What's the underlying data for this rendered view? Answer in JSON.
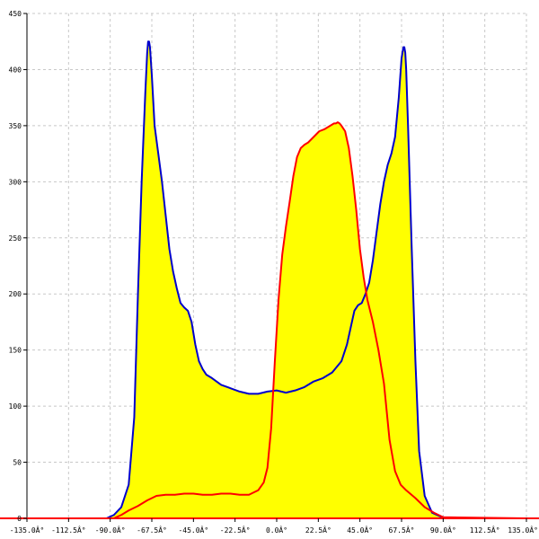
{
  "chart_data": {
    "type": "area",
    "title": "",
    "xlabel": "",
    "ylabel": "",
    "xlim": [
      -135,
      135
    ],
    "ylim": [
      0,
      450
    ],
    "grid": true,
    "legend": "none",
    "x_ticks": [
      -135,
      -112.5,
      -90,
      -67.5,
      -45,
      -22.5,
      0,
      22.5,
      45,
      67.5,
      90,
      112.5,
      135
    ],
    "x_tick_labels": [
      "-135.0Â°",
      "-112.5Â°",
      "-90.0Â°",
      "-67.5Â°",
      "-45.0Â°",
      "-22.5Â°",
      "0.0Â°",
      "22.5Â°",
      "45.0Â°",
      "67.5Â°",
      "90.0Â°",
      "112.5Â°",
      "135.0Â°"
    ],
    "y_ticks": [
      0,
      50,
      100,
      150,
      200,
      250,
      300,
      350,
      400,
      450
    ],
    "y_tick_labels": [
      "0",
      "50",
      "100",
      "150",
      "200",
      "250",
      "300",
      "350",
      "400",
      "450"
    ],
    "fill_color": "#ffff00",
    "series": [
      {
        "color": "#0000cc",
        "x": [
          -135,
          -92,
          -88,
          -84,
          -80,
          -77,
          -75,
          -73,
          -71,
          -70,
          -69.5,
          -69,
          -68.5,
          -67.5,
          -66,
          -64,
          -62,
          -60,
          -58,
          -56,
          -54,
          -52,
          -50,
          -48,
          -46,
          -44,
          -42,
          -40,
          -38,
          -35,
          -30,
          -25,
          -20,
          -15,
          -10,
          -5,
          0,
          5,
          10,
          15,
          20,
          25,
          30,
          35,
          38,
          40,
          42,
          44,
          46,
          48,
          50,
          52,
          54,
          56,
          58,
          60,
          62,
          64,
          66,
          67.5,
          68.5,
          69,
          69.5,
          70,
          71,
          73,
          75,
          77,
          80,
          84,
          88,
          92,
          135
        ],
        "y": [
          0,
          0,
          3,
          10,
          30,
          90,
          200,
          300,
          380,
          415,
          425,
          425,
          420,
          395,
          350,
          325,
          300,
          270,
          240,
          220,
          205,
          192,
          188,
          185,
          175,
          155,
          140,
          133,
          128,
          125,
          119,
          116,
          113,
          111,
          111,
          113,
          114,
          112,
          114,
          117,
          122,
          125,
          130,
          140,
          155,
          170,
          185,
          190,
          192,
          200,
          210,
          230,
          255,
          280,
          300,
          315,
          325,
          340,
          375,
          410,
          420,
          420,
          415,
          400,
          350,
          240,
          140,
          60,
          20,
          5,
          2,
          0,
          0
        ]
      },
      {
        "color": "#ff0000",
        "x": [
          -135,
          -92,
          -88,
          -84,
          -80,
          -75,
          -70,
          -65,
          -60,
          -55,
          -50,
          -45,
          -40,
          -35,
          -30,
          -25,
          -20,
          -15,
          -10,
          -7,
          -5,
          -3,
          -1,
          1,
          3,
          5,
          7,
          9,
          11,
          13,
          15,
          17,
          20,
          23,
          26,
          29,
          30,
          31,
          32,
          33,
          34,
          35,
          37,
          39,
          41,
          43,
          45,
          47,
          49,
          52,
          55,
          58,
          61,
          64,
          67,
          70,
          75,
          80,
          85,
          90,
          135
        ],
        "y": [
          0,
          0,
          0,
          3,
          7,
          11,
          16,
          20,
          21,
          21,
          22,
          22,
          21,
          21,
          22,
          22,
          21,
          21,
          25,
          32,
          45,
          80,
          140,
          195,
          235,
          260,
          282,
          305,
          322,
          330,
          333,
          335,
          340,
          345,
          347,
          350,
          351,
          352,
          352,
          353,
          352,
          350,
          345,
          330,
          305,
          275,
          240,
          215,
          195,
          175,
          150,
          120,
          70,
          42,
          30,
          25,
          18,
          10,
          5,
          1,
          0
        ]
      }
    ]
  }
}
